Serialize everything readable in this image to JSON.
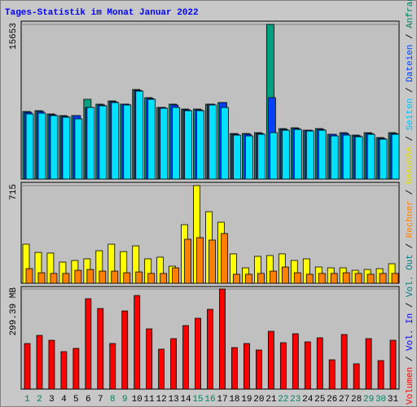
{
  "title": "Tages-Statistik im Monat Januar 2022",
  "title_color": "#0000ff",
  "legend_separator": " / ",
  "legend": [
    {
      "text": "Volumen",
      "color": "#ff0000"
    },
    {
      "text": "Vol. In",
      "color": "#0000ff"
    },
    {
      "text": "Vol. Out",
      "color": "#008080"
    },
    {
      "text": "Rechner",
      "color": "#ff8000"
    },
    {
      "text": "Besuche",
      "color": "#e0e000"
    },
    {
      "text": "Seiten",
      "color": "#00c0ff"
    },
    {
      "text": "Dateien",
      "color": "#0040ff"
    },
    {
      "text": "Anfragen",
      "color": "#008060"
    }
  ],
  "chart_data": [
    {
      "type": "bar",
      "ylim": [
        0,
        15653
      ],
      "yticks": [
        15653
      ],
      "series": [
        {
          "name": "Anfragen",
          "color": "#00a080",
          "values": [
            6839,
            6922,
            6592,
            6427,
            6427,
            8075,
            7581,
            7910,
            7581,
            9064,
            8240,
            7251,
            7581,
            7086,
            7086,
            7581,
            7746,
            4614,
            4614,
            4697,
            15653,
            5109,
            5191,
            4944,
            5109,
            4532,
            4697,
            4450,
            4697,
            4202,
            4697
          ]
        },
        {
          "name": "Dateien",
          "color": "#0040ff",
          "values": [
            6757,
            6839,
            6510,
            6345,
            6427,
            7251,
            7498,
            7828,
            7581,
            8982,
            8158,
            7251,
            7498,
            7004,
            7004,
            7581,
            7746,
            4532,
            4532,
            4614,
            8240,
            5026,
            5109,
            4944,
            5026,
            4532,
            4614,
            4367,
            4614,
            4120,
            4614
          ]
        },
        {
          "name": "Seiten",
          "color": "#00e0ff",
          "values": [
            6592,
            6674,
            6427,
            6262,
            6098,
            7251,
            7416,
            7746,
            7498,
            8899,
            8075,
            7169,
            7251,
            6922,
            6922,
            7498,
            7251,
            4450,
            4367,
            4532,
            4697,
            4944,
            5026,
            4862,
            4944,
            4367,
            4450,
            4285,
            4532,
            4038,
            4532
          ]
        }
      ]
    },
    {
      "type": "bar",
      "ylim": [
        0,
        715
      ],
      "yticks": [
        715
      ],
      "series": [
        {
          "name": "Besuche",
          "color": "#ffff00",
          "values": [
            286,
            226,
            221,
            155,
            167,
            179,
            238,
            286,
            232,
            274,
            179,
            191,
            125,
            429,
            715,
            524,
            447,
            215,
            113,
            197,
            203,
            215,
            167,
            179,
            119,
            113,
            113,
            95,
            101,
            107,
            143
          ]
        },
        {
          "name": "Rechner",
          "color": "#ff8000",
          "values": [
            107,
            77,
            72,
            72,
            95,
            101,
            89,
            89,
            77,
            83,
            72,
            72,
            113,
            322,
            334,
            316,
            364,
            66,
            66,
            72,
            89,
            119,
            77,
            66,
            72,
            72,
            77,
            72,
            66,
            72,
            72
          ]
        }
      ]
    },
    {
      "type": "bar",
      "ylim": [
        0,
        299.39
      ],
      "yticks": [
        {
          "value": 299.39,
          "label": "299.39 MB"
        }
      ],
      "categories": [
        "1",
        "2",
        "3",
        "4",
        "5",
        "6",
        "7",
        "8",
        "9",
        "10",
        "11",
        "12",
        "13",
        "14",
        "15",
        "16",
        "17",
        "18",
        "19",
        "20",
        "21",
        "22",
        "23",
        "24",
        "25",
        "26",
        "27",
        "28",
        "29",
        "30",
        "31"
      ],
      "category_colors": [
        "#008060",
        "#008060",
        "#000000",
        "#000000",
        "#000000",
        "#000000",
        "#000000",
        "#008060",
        "#008060",
        "#000000",
        "#000000",
        "#000000",
        "#000000",
        "#000000",
        "#008060",
        "#008060",
        "#000000",
        "#000000",
        "#000000",
        "#000000",
        "#000000",
        "#008060",
        "#008060",
        "#000000",
        "#000000",
        "#000000",
        "#000000",
        "#000000",
        "#008060",
        "#008060",
        "#000000"
      ],
      "series": [
        {
          "name": "Volumen",
          "color": "#ff0000",
          "values": [
            136.3,
            160.6,
            146.0,
            112.0,
            121.7,
            270.2,
            241.0,
            136.3,
            233.7,
            279.9,
            180.1,
            119.3,
            150.9,
            189.9,
            211.8,
            238.5,
            299.39,
            124.1,
            136.3,
            116.8,
            172.8,
            138.7,
            165.5,
            141.2,
            153.3,
            87.6,
            163.1,
            75.5,
            150.9,
            85.2,
            146.0
          ]
        }
      ]
    }
  ]
}
